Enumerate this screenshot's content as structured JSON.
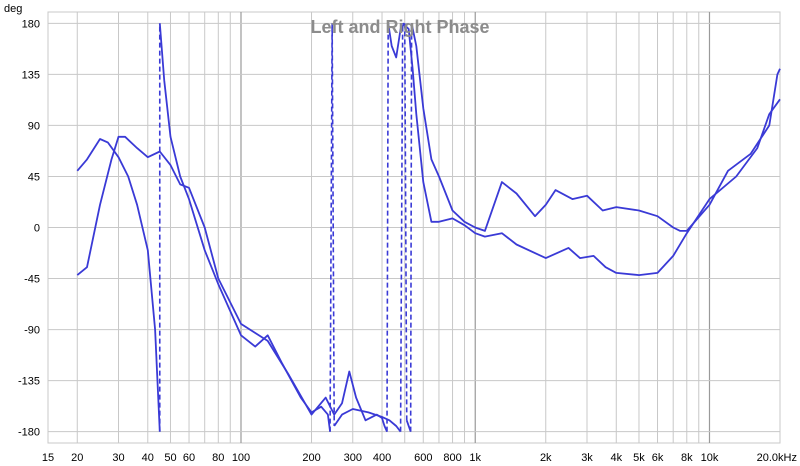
{
  "chart_data": {
    "type": "line",
    "title": "Left and Right Phase",
    "ylabel": "deg",
    "xlabel": "",
    "x_scale": "log",
    "xlim": [
      15,
      20000
    ],
    "ylim": [
      -190,
      190
    ],
    "grid": true,
    "y_ticks": [
      180,
      135,
      90,
      45,
      0,
      -45,
      -90,
      -135,
      -180
    ],
    "y_tick_labels": [
      "180",
      "135",
      "90",
      "45",
      "0",
      "-45",
      "-90",
      "-135",
      "-180"
    ],
    "x_ticks": [
      15,
      20,
      30,
      40,
      50,
      60,
      80,
      100,
      200,
      300,
      400,
      600,
      800,
      1000,
      2000,
      3000,
      4000,
      5000,
      6000,
      8000,
      10000,
      20000
    ],
    "x_tick_labels": [
      "15",
      "20",
      "30",
      "40",
      "50",
      "60",
      "80",
      "100",
      "200",
      "300",
      "400",
      "600",
      "800",
      "1k",
      "2k",
      "3k",
      "4k",
      "5k",
      "6k",
      "8k",
      "10k",
      "20.0kHz"
    ],
    "colors": {
      "series": "#3a3ad6",
      "grid": "#c8c8c8",
      "title": "#8c8c8c"
    },
    "series": [
      {
        "points": [
          [
            20,
            50
          ],
          [
            22,
            60
          ],
          [
            25,
            78
          ],
          [
            27,
            75
          ],
          [
            30,
            62
          ],
          [
            33,
            45
          ],
          [
            36,
            20
          ],
          [
            40,
            -20
          ],
          [
            43,
            -90
          ],
          [
            45,
            -180
          ],
          [
            45,
            180
          ],
          [
            47,
            130
          ],
          [
            50,
            80
          ],
          [
            55,
            45
          ],
          [
            60,
            25
          ],
          [
            70,
            -20
          ],
          [
            80,
            -50
          ],
          [
            100,
            -95
          ],
          [
            115,
            -105
          ],
          [
            130,
            -95
          ],
          [
            150,
            -120
          ],
          [
            180,
            -150
          ],
          [
            200,
            -163
          ],
          [
            220,
            -158
          ],
          [
            235,
            -165
          ],
          [
            240,
            -180
          ],
          [
            245,
            180
          ],
          [
            250,
            -175
          ],
          [
            270,
            -165
          ],
          [
            300,
            -160
          ],
          [
            350,
            -163
          ],
          [
            400,
            -167
          ],
          [
            430,
            -170
          ],
          [
            460,
            -175
          ],
          [
            480,
            -180
          ],
          [
            490,
            180
          ],
          [
            520,
            175
          ],
          [
            540,
            140
          ],
          [
            560,
            100
          ],
          [
            600,
            40
          ],
          [
            650,
            5
          ],
          [
            700,
            5
          ],
          [
            800,
            8
          ],
          [
            900,
            2
          ],
          [
            1000,
            -5
          ],
          [
            1100,
            -8
          ],
          [
            1300,
            -5
          ],
          [
            1500,
            -15
          ],
          [
            2000,
            -27
          ],
          [
            2500,
            -18
          ],
          [
            2800,
            -27
          ],
          [
            3200,
            -25
          ],
          [
            3600,
            -35
          ],
          [
            4000,
            -40
          ],
          [
            5000,
            -42
          ],
          [
            6000,
            -40
          ],
          [
            7000,
            -25
          ],
          [
            8000,
            -5
          ],
          [
            10000,
            25
          ],
          [
            13000,
            45
          ],
          [
            16000,
            70
          ],
          [
            18000,
            100
          ],
          [
            20000,
            113
          ]
        ]
      },
      {
        "points": [
          [
            20,
            -42
          ],
          [
            22,
            -35
          ],
          [
            25,
            20
          ],
          [
            28,
            60
          ],
          [
            30,
            80
          ],
          [
            32,
            80
          ],
          [
            36,
            70
          ],
          [
            40,
            62
          ],
          [
            45,
            67
          ],
          [
            50,
            55
          ],
          [
            55,
            38
          ],
          [
            60,
            35
          ],
          [
            70,
            0
          ],
          [
            80,
            -45
          ],
          [
            100,
            -85
          ],
          [
            130,
            -100
          ],
          [
            160,
            -130
          ],
          [
            200,
            -165
          ],
          [
            230,
            -150
          ],
          [
            250,
            -165
          ],
          [
            270,
            -155
          ],
          [
            290,
            -127
          ],
          [
            310,
            -150
          ],
          [
            340,
            -170
          ],
          [
            380,
            -165
          ],
          [
            400,
            -168
          ],
          [
            410,
            -175
          ],
          [
            420,
            -180
          ],
          [
            425,
            180
          ],
          [
            440,
            160
          ],
          [
            460,
            150
          ],
          [
            480,
            175
          ],
          [
            500,
            180
          ],
          [
            510,
            -170
          ],
          [
            530,
            -180
          ],
          [
            535,
            180
          ],
          [
            560,
            160
          ],
          [
            600,
            105
          ],
          [
            650,
            60
          ],
          [
            700,
            45
          ],
          [
            800,
            15
          ],
          [
            900,
            5
          ],
          [
            1000,
            0
          ],
          [
            1100,
            -3
          ],
          [
            1300,
            40
          ],
          [
            1500,
            30
          ],
          [
            1800,
            10
          ],
          [
            2000,
            20
          ],
          [
            2200,
            33
          ],
          [
            2600,
            25
          ],
          [
            3000,
            28
          ],
          [
            3500,
            15
          ],
          [
            4000,
            18
          ],
          [
            5000,
            15
          ],
          [
            6000,
            10
          ],
          [
            7000,
            0
          ],
          [
            7500,
            -3
          ],
          [
            8000,
            -3
          ],
          [
            10000,
            20
          ],
          [
            12000,
            50
          ],
          [
            15000,
            65
          ],
          [
            18000,
            90
          ],
          [
            19500,
            135
          ],
          [
            20000,
            140
          ]
        ]
      }
    ]
  }
}
